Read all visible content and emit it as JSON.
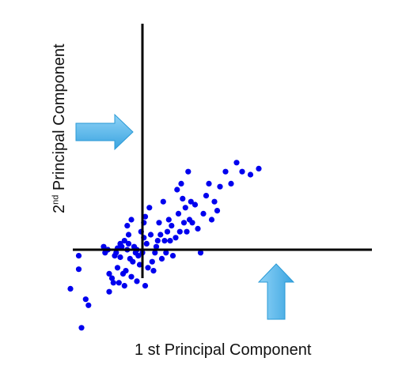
{
  "chart_data": {
    "type": "scatter",
    "title": "",
    "xlabel": "1 st Principal Component",
    "ylabel_prefix": "2",
    "ylabel_sup": "nd",
    "ylabel_rest": " Principal Component",
    "xlim": [
      -3.0,
      5.9
    ],
    "ylim": [
      -2.8,
      5.8
    ],
    "point_color": "#0000ee",
    "axis_color": "#000000",
    "arrow_color": "#5bb8ea",
    "arrow_dark": "#2a9ad6",
    "points": [
      [
        -2.6,
        -1.3
      ],
      [
        -2.3,
        -0.2
      ],
      [
        -2.3,
        -0.65
      ],
      [
        -2.05,
        -1.65
      ],
      [
        -1.95,
        -1.85
      ],
      [
        -2.2,
        -2.6
      ],
      [
        -1.4,
        0.1
      ],
      [
        -1.35,
        -0.1
      ],
      [
        -1.25,
        0.0
      ],
      [
        -1.2,
        -0.8
      ],
      [
        -1.2,
        -1.4
      ],
      [
        -1.1,
        -0.95
      ],
      [
        -1.05,
        -1.1
      ],
      [
        -1.0,
        -0.2
      ],
      [
        -0.95,
        -0.1
      ],
      [
        -0.9,
        0.05
      ],
      [
        -0.9,
        -0.6
      ],
      [
        -0.85,
        -1.1
      ],
      [
        -0.8,
        0.2
      ],
      [
        -0.8,
        -0.25
      ],
      [
        -0.75,
        0.1
      ],
      [
        -0.7,
        -0.8
      ],
      [
        -0.65,
        0.3
      ],
      [
        -0.65,
        -1.2
      ],
      [
        -0.6,
        -0.7
      ],
      [
        -0.55,
        0.0
      ],
      [
        -0.55,
        0.8
      ],
      [
        -0.5,
        0.5
      ],
      [
        -0.5,
        0.2
      ],
      [
        -0.45,
        -0.3
      ],
      [
        -0.4,
        -0.9
      ],
      [
        -0.4,
        1.0
      ],
      [
        -0.35,
        -0.4
      ],
      [
        -0.3,
        0.1
      ],
      [
        -0.25,
        -0.1
      ],
      [
        -0.2,
        -1.05
      ],
      [
        -0.2,
        0.0
      ],
      [
        -0.15,
        -0.2
      ],
      [
        -0.1,
        -0.5
      ],
      [
        -0.05,
        0.6
      ],
      [
        0.0,
        -0.1
      ],
      [
        0.05,
        0.9
      ],
      [
        0.05,
        0.4
      ],
      [
        0.1,
        1.1
      ],
      [
        0.1,
        -1.2
      ],
      [
        0.15,
        0.2
      ],
      [
        0.2,
        -0.6
      ],
      [
        0.25,
        1.4
      ],
      [
        0.3,
        0.5
      ],
      [
        0.35,
        -0.4
      ],
      [
        0.4,
        -0.7
      ],
      [
        0.45,
        -0.1
      ],
      [
        0.5,
        0.1
      ],
      [
        0.55,
        0.3
      ],
      [
        0.6,
        0.9
      ],
      [
        0.65,
        0.5
      ],
      [
        0.7,
        -0.3
      ],
      [
        0.75,
        1.6
      ],
      [
        0.8,
        0.3
      ],
      [
        0.85,
        -0.1
      ],
      [
        0.9,
        0.6
      ],
      [
        0.95,
        1.0
      ],
      [
        1.0,
        0.3
      ],
      [
        1.05,
        0.8
      ],
      [
        1.1,
        -0.2
      ],
      [
        1.2,
        0.4
      ],
      [
        1.25,
        2.0
      ],
      [
        1.3,
        1.2
      ],
      [
        1.35,
        0.6
      ],
      [
        1.4,
        2.2
      ],
      [
        1.45,
        1.7
      ],
      [
        1.5,
        0.9
      ],
      [
        1.55,
        1.4
      ],
      [
        1.6,
        0.6
      ],
      [
        1.65,
        2.6
      ],
      [
        1.7,
        1.0
      ],
      [
        1.75,
        1.6
      ],
      [
        1.8,
        0.9
      ],
      [
        1.9,
        1.5
      ],
      [
        2.0,
        0.7
      ],
      [
        2.1,
        -0.1
      ],
      [
        2.2,
        1.2
      ],
      [
        2.3,
        1.8
      ],
      [
        2.4,
        2.2
      ],
      [
        2.5,
        1.0
      ],
      [
        2.6,
        1.6
      ],
      [
        2.7,
        1.3
      ],
      [
        2.8,
        2.1
      ],
      [
        3.0,
        2.6
      ],
      [
        3.2,
        2.2
      ],
      [
        3.4,
        2.9
      ],
      [
        3.6,
        2.6
      ],
      [
        3.9,
        2.5
      ],
      [
        4.2,
        2.7
      ]
    ]
  },
  "annotations": {
    "arrow_right_label": "",
    "arrow_up_label": ""
  }
}
